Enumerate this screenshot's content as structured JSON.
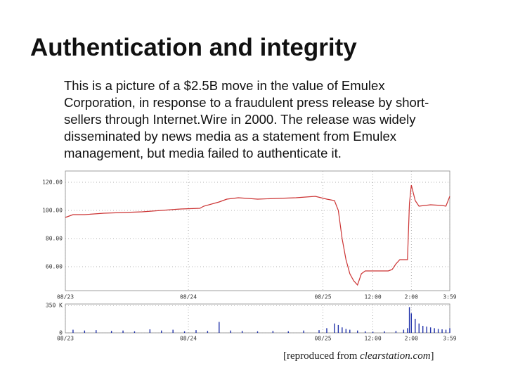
{
  "title": "Authentication and integrity",
  "body_lines": [
    "This is a picture of a $2.5B move in the value of Emulex",
    "Corporation, in response to a fraudulent press release by short-",
    "sellers through Internet.Wire in 2000.  The release was widely",
    "disseminated by news media as a statement from Emulex",
    "management, but media failed to authenticate it."
  ],
  "caption": {
    "prefix": "[reproduced from ",
    "source": "clearstation.com",
    "suffix": "]"
  },
  "chart_data": [
    {
      "type": "line",
      "color": "#cc3333",
      "x": [
        0,
        2,
        5,
        10,
        15,
        20,
        25,
        30,
        35,
        36,
        40,
        42,
        45,
        50,
        55,
        60,
        65,
        68,
        70,
        71,
        72,
        73,
        74,
        75,
        76,
        77,
        78,
        80,
        82,
        84,
        85,
        86,
        87,
        88,
        89,
        89.5,
        90,
        91,
        92,
        95,
        98,
        99,
        100
      ],
      "values": [
        95,
        97,
        97,
        98,
        98.5,
        99,
        100,
        101,
        101.5,
        103,
        106,
        108,
        109,
        108,
        108.5,
        109,
        110,
        108,
        107,
        100,
        80,
        65,
        55,
        50,
        47,
        55,
        57,
        57,
        57,
        57,
        58,
        62,
        65,
        65,
        65,
        105,
        118,
        107,
        103,
        104,
        103.5,
        103,
        110
      ],
      "xlim": [
        0,
        100
      ],
      "xticks": [
        {
          "value": 0,
          "label": "08/23"
        },
        {
          "value": 32,
          "label": "08/24"
        },
        {
          "value": 67,
          "label": "08/25"
        },
        {
          "value": 80,
          "label": "12:00"
        },
        {
          "value": 90,
          "label": "2:00"
        },
        {
          "value": 100,
          "label": "3:59"
        }
      ],
      "ylim": [
        43,
        128
      ],
      "yticks": [
        {
          "value": 120,
          "label": "120.00"
        },
        {
          "value": 100,
          "label": "100.00"
        },
        {
          "value": 80,
          "label": "80.00"
        },
        {
          "value": 60,
          "label": "60.00"
        }
      ],
      "grid": true
    },
    {
      "type": "bar",
      "color": "#2233aa",
      "x": [
        2,
        5,
        8,
        12,
        15,
        18,
        22,
        25,
        28,
        31,
        34,
        37,
        40,
        43,
        46,
        50,
        54,
        58,
        62,
        66,
        68,
        70,
        71,
        72,
        73,
        74,
        76,
        78,
        80,
        83,
        86,
        88,
        89,
        89.5,
        90,
        91,
        92,
        93,
        94,
        95,
        96,
        97,
        98,
        99,
        100
      ],
      "values": [
        40,
        30,
        35,
        25,
        30,
        20,
        45,
        30,
        40,
        20,
        35,
        25,
        140,
        30,
        25,
        20,
        25,
        20,
        30,
        35,
        60,
        120,
        100,
        70,
        50,
        40,
        30,
        20,
        15,
        20,
        25,
        40,
        60,
        330,
        250,
        180,
        120,
        90,
        80,
        70,
        60,
        50,
        45,
        40,
        60
      ],
      "xlim": [
        0,
        100
      ],
      "xticks": [
        {
          "value": 0,
          "label": "08/23"
        },
        {
          "value": 32,
          "label": "08/24"
        },
        {
          "value": 67,
          "label": "08/25"
        },
        {
          "value": 80,
          "label": "12:00"
        },
        {
          "value": 90,
          "label": "2:00"
        },
        {
          "value": 100,
          "label": "3:59"
        }
      ],
      "ylim": [
        0,
        370
      ],
      "yticks": [
        {
          "value": 350,
          "label": "350 K"
        },
        0
      ],
      "grid": true
    }
  ]
}
